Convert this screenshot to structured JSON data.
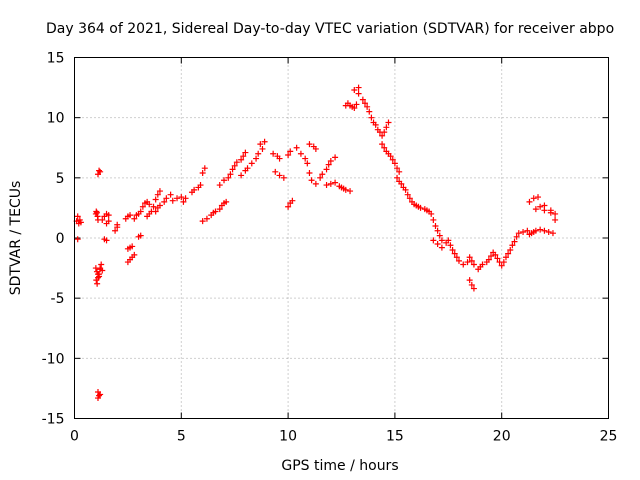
{
  "chart_data": {
    "type": "scatter",
    "title": "Day 364 of 2021, Sidereal Day-to-day VTEC variation (SDTVAR) for receiver abpo",
    "xlabel": "GPS time / hours",
    "ylabel": "SDTVAR / TECUs",
    "xlim": [
      0,
      25
    ],
    "ylim": [
      -15,
      15
    ],
    "x_ticks": [
      0,
      5,
      10,
      15,
      20,
      25
    ],
    "y_ticks": [
      -15,
      -10,
      -5,
      0,
      5,
      10,
      15
    ],
    "x_tick_labels": [
      "0",
      "5",
      "10",
      "15",
      "20",
      "25"
    ],
    "y_tick_labels": [
      "-15",
      "-10",
      "-5",
      "0",
      "5",
      "10",
      "15"
    ],
    "grid": true,
    "marker": "plus",
    "color": "#ff0000",
    "series": [
      {
        "name": "SDTVAR",
        "x": [
          0.1,
          0.15,
          0.2,
          0.25,
          0.3,
          0.15,
          1.0,
          1.02,
          1.05,
          1.08,
          1.1,
          1.0,
          1.05,
          1.1,
          1.15,
          1.02,
          1.06,
          1.1,
          1.2,
          1.25,
          1.15,
          1.2,
          1.3,
          1.1,
          1.15,
          1.2,
          1.1,
          1.2,
          1.1,
          1.15,
          1.3,
          1.4,
          1.5,
          1.6,
          1.4,
          1.5,
          1.5,
          1.6,
          1.9,
          2.0,
          2.0,
          2.4,
          2.5,
          2.6,
          2.5,
          2.6,
          2.7,
          2.5,
          2.6,
          2.7,
          2.8,
          3.0,
          3.1,
          2.8,
          2.9,
          3.0,
          3.1,
          3.2,
          3.3,
          3.4,
          3.5,
          3.4,
          3.5,
          3.6,
          3.7,
          3.8,
          3.9,
          4.0,
          3.8,
          3.9,
          4.0,
          4.2,
          4.3,
          4.5,
          4.6,
          4.8,
          5.0,
          5.1,
          5.2,
          5.5,
          5.6,
          5.8,
          5.9,
          6.0,
          6.1,
          6.0,
          6.2,
          6.4,
          6.5,
          6.6,
          6.8,
          6.9,
          7.0,
          7.1,
          6.8,
          7.0,
          7.2,
          7.3,
          7.4,
          7.5,
          7.6,
          7.8,
          7.9,
          8.0,
          7.8,
          8.0,
          8.1,
          8.3,
          8.5,
          8.6,
          8.8,
          8.7,
          8.9,
          9.3,
          9.5,
          9.6,
          9.4,
          9.6,
          9.8,
          10.0,
          10.1,
          10.2,
          10.0,
          10.1,
          10.4,
          10.6,
          10.8,
          10.9,
          11.0,
          11.2,
          11.3,
          11.0,
          11.1,
          11.3,
          11.5,
          11.6,
          11.8,
          11.9,
          12.0,
          12.2,
          11.8,
          12.0,
          12.2,
          12.4,
          12.5,
          12.6,
          12.7,
          12.9,
          12.7,
          12.8,
          12.9,
          13.0,
          13.1,
          13.2,
          13.3,
          13.1,
          13.3,
          13.5,
          13.6,
          13.7,
          13.8,
          13.9,
          14.0,
          14.1,
          14.2,
          14.3,
          14.4,
          14.5,
          14.6,
          14.7,
          14.4,
          14.5,
          14.6,
          14.7,
          14.8,
          14.9,
          15.0,
          15.1,
          15.2,
          15.1,
          15.2,
          15.3,
          15.4,
          15.5,
          15.6,
          15.7,
          15.8,
          15.9,
          16.0,
          16.1,
          16.2,
          16.4,
          16.5,
          16.6,
          16.7,
          16.8,
          16.9,
          17.0,
          17.1,
          17.2,
          16.8,
          17.0,
          17.2,
          17.4,
          17.5,
          17.6,
          17.7,
          17.8,
          17.9,
          18.0,
          18.2,
          18.4,
          18.5,
          18.6,
          18.7,
          18.5,
          18.6,
          18.7,
          18.9,
          19.0,
          19.1,
          19.3,
          19.4,
          19.5,
          19.6,
          19.7,
          19.8,
          19.9,
          20.0,
          20.1,
          20.2,
          20.3,
          20.4,
          20.5,
          20.6,
          20.7,
          20.8,
          21.0,
          21.2,
          21.3,
          21.4,
          21.5,
          21.6,
          21.8,
          22.0,
          22.2,
          22.4,
          21.6,
          21.8,
          22.0,
          22.3,
          22.5,
          21.3,
          21.5,
          21.7,
          22.0,
          22.3,
          22.5
        ],
        "y": [
          1.4,
          1.8,
          1.2,
          1.5,
          1.3,
          -0.1,
          2.0,
          2.2,
          2.1,
          1.8,
          1.5,
          -2.5,
          -2.8,
          -3.0,
          -3.2,
          -3.5,
          -3.8,
          -3.3,
          -2.5,
          -2.2,
          -3.0,
          -2.6,
          -2.7,
          5.3,
          5.6,
          5.5,
          -12.8,
          -13.0,
          -13.3,
          -13.1,
          1.5,
          1.8,
          2.0,
          1.9,
          -0.1,
          -0.2,
          1.2,
          1.4,
          0.6,
          0.9,
          1.1,
          1.6,
          1.8,
          1.9,
          -0.9,
          -0.8,
          -0.7,
          -2.0,
          -1.8,
          -1.6,
          -1.4,
          0.1,
          0.2,
          1.6,
          1.9,
          2.0,
          2.2,
          2.6,
          2.9,
          3.0,
          2.8,
          1.8,
          2.0,
          2.2,
          2.6,
          3.2,
          3.6,
          3.9,
          2.2,
          2.5,
          2.7,
          3.0,
          3.3,
          3.6,
          3.1,
          3.3,
          3.4,
          3.0,
          3.3,
          3.8,
          4.0,
          4.2,
          4.4,
          5.4,
          5.8,
          1.4,
          1.6,
          1.9,
          2.1,
          2.2,
          2.4,
          2.7,
          2.9,
          3.0,
          4.4,
          4.8,
          5.0,
          5.3,
          5.7,
          6.0,
          6.3,
          6.5,
          6.8,
          7.1,
          5.2,
          5.6,
          5.8,
          6.2,
          6.6,
          7.0,
          7.4,
          7.8,
          8.0,
          7.0,
          6.8,
          6.6,
          5.5,
          5.2,
          5.0,
          2.6,
          2.9,
          3.1,
          6.9,
          7.2,
          7.5,
          7.0,
          6.6,
          6.2,
          7.8,
          7.6,
          7.4,
          5.4,
          4.8,
          4.5,
          5.0,
          5.3,
          5.7,
          6.1,
          6.4,
          6.7,
          4.4,
          4.5,
          4.6,
          4.3,
          4.2,
          4.1,
          4.0,
          3.9,
          11.0,
          11.2,
          11.0,
          10.9,
          10.8,
          11.1,
          12.5,
          12.3,
          12.0,
          11.5,
          11.2,
          10.9,
          10.5,
          10.0,
          9.6,
          9.4,
          9.0,
          8.8,
          8.5,
          8.8,
          9.2,
          9.6,
          7.8,
          7.5,
          7.2,
          7.0,
          6.8,
          6.5,
          6.2,
          5.8,
          5.5,
          5.0,
          4.7,
          4.5,
          4.2,
          4.0,
          3.6,
          3.3,
          3.0,
          2.8,
          2.7,
          2.6,
          2.5,
          2.4,
          2.3,
          2.2,
          2.0,
          1.5,
          1.0,
          0.6,
          0.2,
          -0.2,
          -0.2,
          -0.5,
          -0.8,
          -0.4,
          -0.2,
          -0.6,
          -1.0,
          -1.3,
          -1.6,
          -1.9,
          -2.2,
          -2.0,
          -3.5,
          -3.9,
          -4.2,
          -1.6,
          -1.9,
          -2.2,
          -2.6,
          -2.4,
          -2.2,
          -2.0,
          -1.8,
          -1.5,
          -1.2,
          -1.4,
          -1.7,
          -2.0,
          -2.3,
          -2.0,
          -1.6,
          -1.3,
          -1.0,
          -0.6,
          -0.3,
          0.1,
          0.4,
          0.5,
          0.6,
          0.3,
          0.4,
          0.5,
          0.6,
          0.7,
          0.6,
          0.5,
          0.4,
          2.4,
          2.6,
          2.3,
          2.1,
          2.0,
          3.0,
          3.3,
          3.4,
          2.7,
          2.3,
          1.5
        ]
      }
    ]
  }
}
